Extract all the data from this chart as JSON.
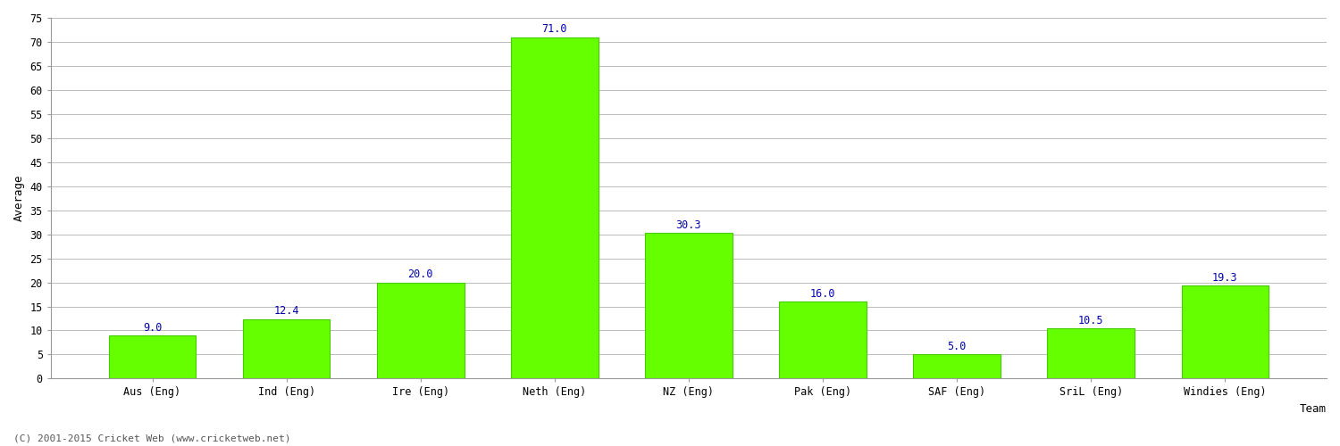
{
  "title": "",
  "categories": [
    "Aus (Eng)",
    "Ind (Eng)",
    "Ire (Eng)",
    "Neth (Eng)",
    "NZ (Eng)",
    "Pak (Eng)",
    "SAF (Eng)",
    "SriL (Eng)",
    "Windies (Eng)"
  ],
  "values": [
    9.0,
    12.4,
    20.0,
    71.0,
    30.3,
    16.0,
    5.0,
    10.5,
    19.3
  ],
  "bar_color": "#66ff00",
  "bar_edge_color": "#44cc00",
  "label_color": "#0000aa",
  "xlabel": "Team",
  "ylabel": "Average",
  "ylim": [
    0,
    75
  ],
  "yticks": [
    0,
    5,
    10,
    15,
    20,
    25,
    30,
    35,
    40,
    45,
    50,
    55,
    60,
    65,
    70,
    75
  ],
  "grid_color": "#bbbbbb",
  "background_color": "#ffffff",
  "footer_text": "(C) 2001-2015 Cricket Web (www.cricketweb.net)",
  "label_fontsize": 8.5,
  "axis_label_fontsize": 9,
  "tick_fontsize": 8.5,
  "footer_fontsize": 8
}
